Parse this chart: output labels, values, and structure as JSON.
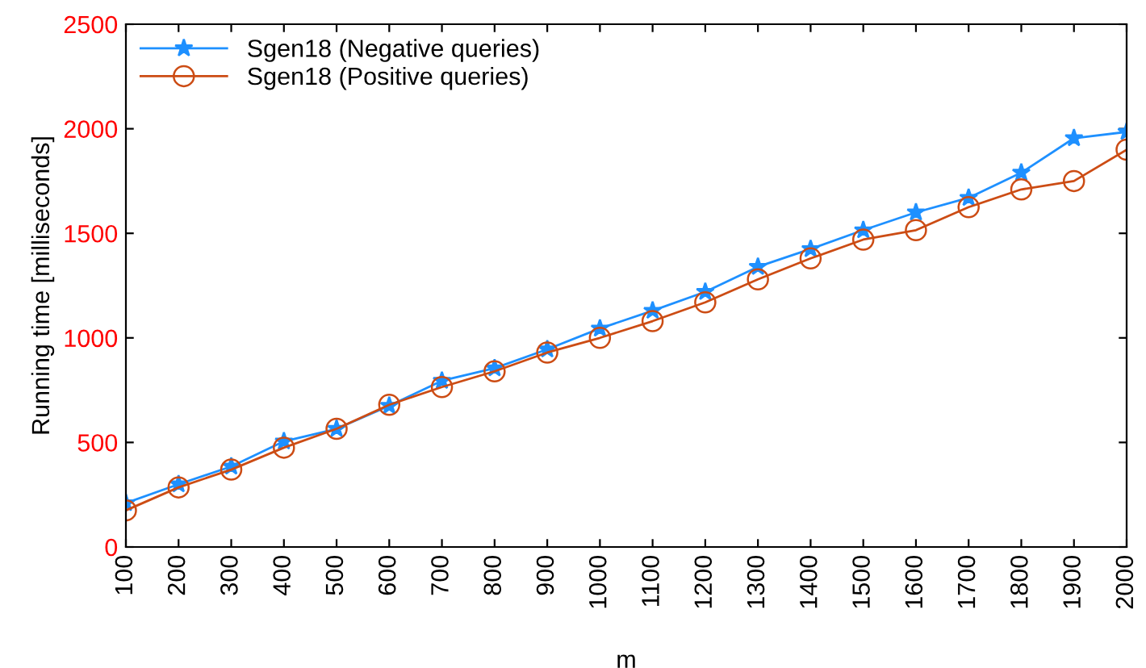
{
  "chart_data": {
    "type": "line",
    "xlabel": "m",
    "ylabel": "Running time [milliseconds]",
    "x": [
      100,
      200,
      300,
      400,
      500,
      600,
      700,
      800,
      900,
      1000,
      1100,
      1200,
      1300,
      1400,
      1500,
      1600,
      1700,
      1800,
      1900,
      2000
    ],
    "series": [
      {
        "name": "Sgen18 (Negative queries)",
        "color": "#1e90ff",
        "marker": "star",
        "values": [
          210,
          300,
          385,
          505,
          565,
          675,
          795,
          855,
          945,
          1045,
          1130,
          1220,
          1340,
          1425,
          1515,
          1600,
          1670,
          1790,
          1955,
          1985
        ]
      },
      {
        "name": "Sgen18 (Positive queries)",
        "color": "#cc4c14",
        "marker": "circle",
        "values": [
          175,
          285,
          370,
          475,
          565,
          680,
          765,
          840,
          930,
          1000,
          1080,
          1170,
          1280,
          1380,
          1470,
          1515,
          1625,
          1710,
          1750,
          1900
        ]
      }
    ],
    "xlim": [
      100,
      2000
    ],
    "xticks": [
      100,
      200,
      300,
      400,
      500,
      600,
      700,
      800,
      900,
      1000,
      1100,
      1200,
      1300,
      1400,
      1500,
      1600,
      1700,
      1800,
      1900,
      2000
    ],
    "ylim": [
      0,
      2500
    ],
    "yticks": [
      0,
      500,
      1000,
      1500,
      2000,
      2500
    ],
    "grid": false,
    "legend": "top left",
    "line_style": "solid"
  }
}
